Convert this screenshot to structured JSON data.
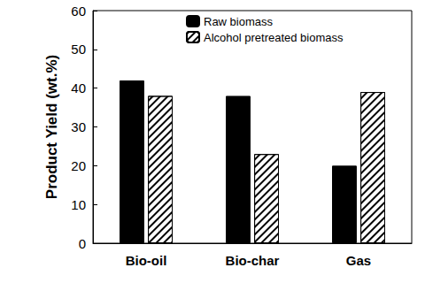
{
  "chart_data": {
    "type": "bar",
    "y_label": "Product Yield (wt.%)",
    "categories": [
      "Bio-oil",
      "Bio-char",
      "Gas"
    ],
    "series": [
      {
        "name": "Raw biomass",
        "color": "#000000",
        "values": [
          42,
          38,
          20
        ]
      },
      {
        "name": "Alcohol pretreated biomass",
        "color": "#ffffff",
        "marker": "hatch",
        "values": [
          38,
          23,
          39
        ]
      }
    ],
    "ylim": [
      0,
      60
    ],
    "yticks": [
      0,
      10,
      20,
      30,
      40,
      50,
      60
    ],
    "grid": false,
    "legend": "upper center"
  }
}
